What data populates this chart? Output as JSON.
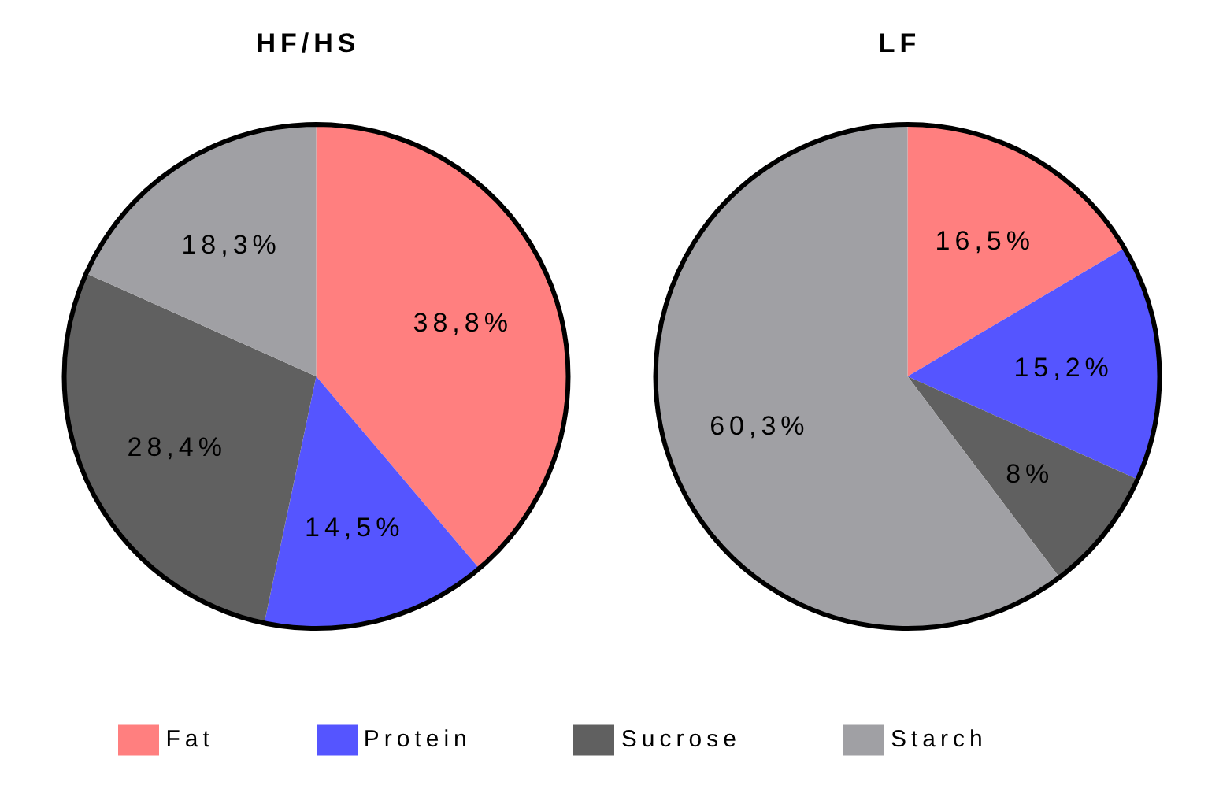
{
  "chart_data": {
    "type": "pie",
    "categories": [
      "Fat",
      "Protein",
      "Sucrose",
      "Starch"
    ],
    "colors": [
      "#ff7f7f",
      "#5555ff",
      "#606060",
      "#a0a0a4"
    ],
    "legend": "bottom",
    "series": [
      {
        "name": "HF/HS",
        "values": [
          38.8,
          14.5,
          28.4,
          18.3
        ],
        "value_labels": [
          "38,8%",
          "14,5%",
          "28,4%",
          "18,3%"
        ]
      },
      {
        "name": "LF",
        "values": [
          16.5,
          15.2,
          8,
          60.3
        ],
        "value_labels": [
          "16,5%",
          "15,2%",
          "8%",
          "60,3%"
        ]
      }
    ]
  }
}
